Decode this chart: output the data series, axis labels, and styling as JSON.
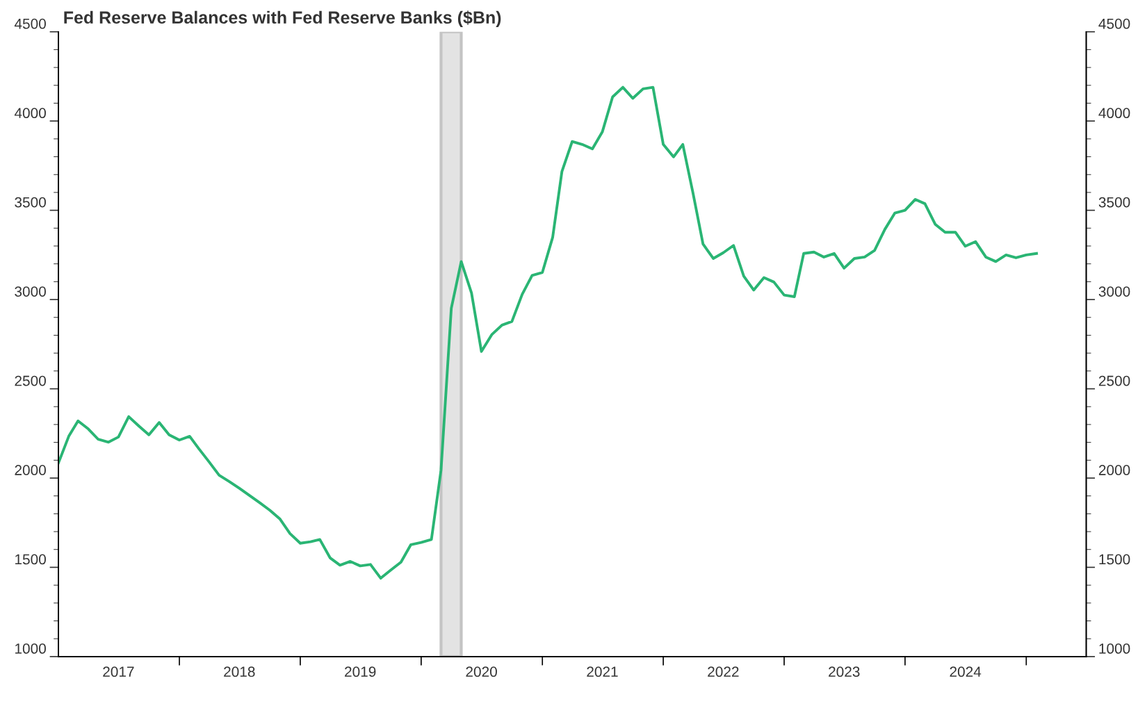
{
  "chart_data": {
    "type": "line",
    "title": "Fed Reserve Balances with Fed Reserve Banks ($Bn)",
    "x": [
      "2017-01",
      "2017-02",
      "2017-03",
      "2017-04",
      "2017-05",
      "2017-06",
      "2017-07",
      "2017-08",
      "2017-09",
      "2017-10",
      "2017-11",
      "2017-12",
      "2018-01",
      "2018-02",
      "2018-03",
      "2018-04",
      "2018-05",
      "2018-06",
      "2018-07",
      "2018-08",
      "2018-09",
      "2018-10",
      "2018-11",
      "2018-12",
      "2019-01",
      "2019-02",
      "2019-03",
      "2019-04",
      "2019-05",
      "2019-06",
      "2019-07",
      "2019-08",
      "2019-09",
      "2019-10",
      "2019-11",
      "2019-12",
      "2020-01",
      "2020-02",
      "2020-03",
      "2020-04",
      "2020-05",
      "2020-06",
      "2020-07",
      "2020-08",
      "2020-09",
      "2020-10",
      "2020-11",
      "2020-12",
      "2021-01",
      "2021-02",
      "2021-03",
      "2021-04",
      "2021-05",
      "2021-06",
      "2021-07",
      "2021-08",
      "2021-09",
      "2021-10",
      "2021-11",
      "2021-12",
      "2022-01",
      "2022-02",
      "2022-03",
      "2022-04",
      "2022-05",
      "2022-06",
      "2022-07",
      "2022-08",
      "2022-09",
      "2022-10",
      "2022-11",
      "2022-12",
      "2023-01",
      "2023-02",
      "2023-03",
      "2023-04",
      "2023-05",
      "2023-06",
      "2023-07",
      "2023-08",
      "2023-09",
      "2023-10",
      "2023-11",
      "2023-12",
      "2024-01",
      "2024-02",
      "2024-03",
      "2024-04",
      "2024-05",
      "2024-06",
      "2024-07",
      "2024-08",
      "2024-09",
      "2024-10",
      "2024-11",
      "2024-12",
      "2025-01",
      "2025-02"
    ],
    "series": [
      {
        "color": "#2ab574",
        "values": [
          2086,
          2234,
          2320,
          2275,
          2217,
          2201,
          2230,
          2344,
          2291,
          2242,
          2311,
          2242,
          2213,
          2234,
          2164,
          2090,
          2016,
          1980,
          1943,
          1902,
          1861,
          1820,
          1770,
          1689,
          1635,
          1643,
          1656,
          1553,
          1512,
          1533,
          1508,
          1516,
          1439,
          1484,
          1529,
          1627,
          1639,
          1656,
          2045,
          2951,
          3213,
          3037,
          2709,
          2803,
          2857,
          2877,
          3029,
          3135,
          3152,
          3348,
          3717,
          3885,
          3869,
          3844,
          3939,
          4135,
          4189,
          4127,
          4180,
          4189,
          3869,
          3799,
          3869,
          3594,
          3311,
          3230,
          3262,
          3303,
          3131,
          3053,
          3123,
          3098,
          3025,
          3016,
          3258,
          3266,
          3238,
          3258,
          3176,
          3230,
          3238,
          3275,
          3393,
          3484,
          3500,
          3561,
          3537,
          3422,
          3377,
          3377,
          3299,
          3324,
          3238,
          3213,
          3250,
          3234,
          3250,
          3258
        ]
      }
    ],
    "xlim": [
      "2017-01-01",
      "2025-07-01"
    ],
    "xticks": [
      {
        "value": "2017-07-01",
        "label": "2017"
      },
      {
        "value": "2018-01-01",
        "label": null
      },
      {
        "value": "2018-07-01",
        "label": "2018"
      },
      {
        "value": "2019-01-01",
        "label": null
      },
      {
        "value": "2019-07-01",
        "label": "2019"
      },
      {
        "value": "2020-01-01",
        "label": null
      },
      {
        "value": "2020-07-01",
        "label": "2020"
      },
      {
        "value": "2021-01-01",
        "label": null
      },
      {
        "value": "2021-07-01",
        "label": "2021"
      },
      {
        "value": "2022-01-01",
        "label": null
      },
      {
        "value": "2022-07-01",
        "label": "2022"
      },
      {
        "value": "2023-01-01",
        "label": null
      },
      {
        "value": "2023-07-01",
        "label": "2023"
      },
      {
        "value": "2024-01-01",
        "label": null
      },
      {
        "value": "2024-07-01",
        "label": "2024"
      },
      {
        "value": "2025-01-01",
        "label": null
      }
    ],
    "ylim": [
      1000,
      4500
    ],
    "yticks": [
      1000,
      1500,
      2000,
      2500,
      3000,
      3500,
      4000,
      4500
    ],
    "y2lim": [
      1000,
      4500
    ],
    "y2ticks": [
      1000,
      1500,
      2000,
      2500,
      3000,
      3500,
      4000,
      4500
    ],
    "bands": [
      {
        "axis": "x",
        "from": "2020-03-01",
        "to": "2020-05-01",
        "color": "#e3e3e3"
      }
    ],
    "grid": false,
    "legend": false,
    "marker": "none",
    "line_style": "solid"
  }
}
